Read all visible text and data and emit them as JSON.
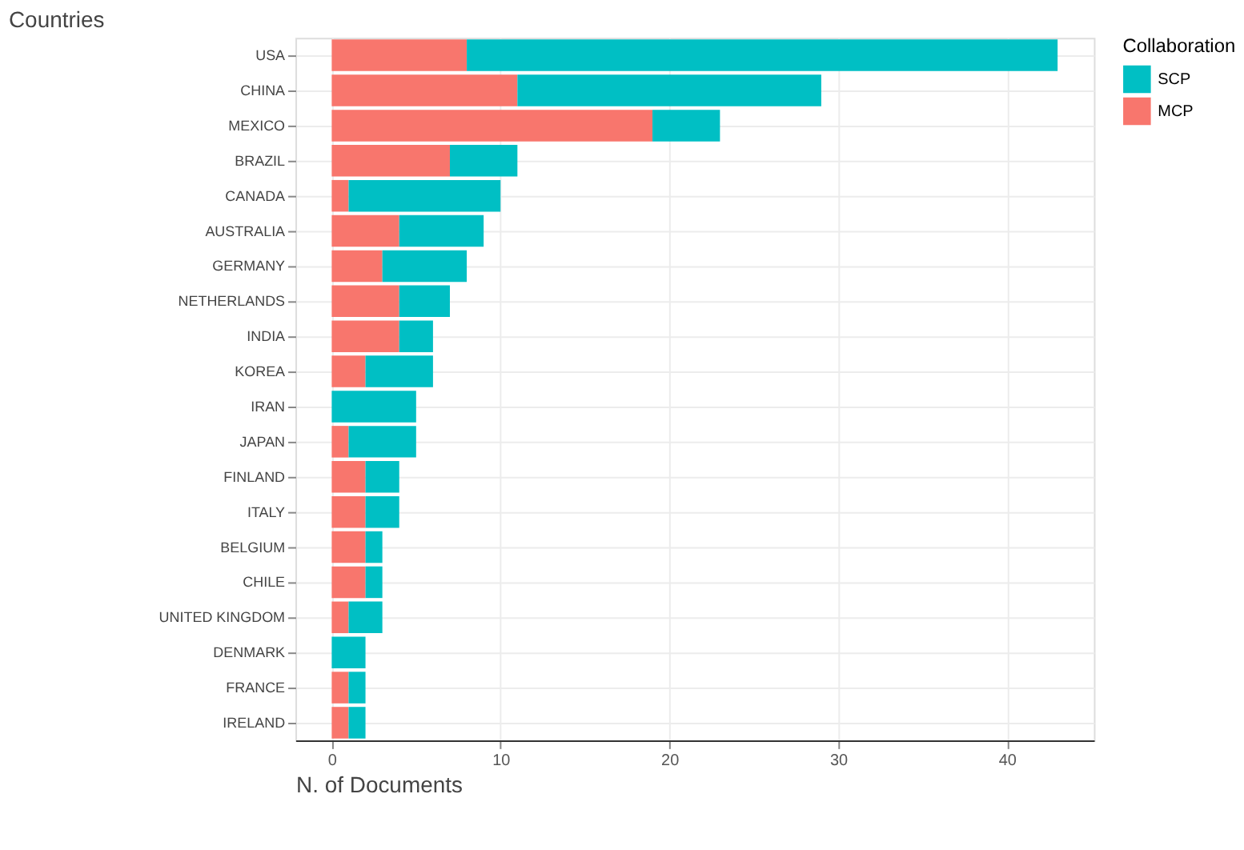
{
  "chart_data": {
    "type": "bar",
    "orientation": "horizontal",
    "stacked": true,
    "xlabel": "N. of Documents",
    "ylabel": "Countries",
    "legend_title": "Collaboration",
    "legend": "right",
    "grid": true,
    "categories": [
      "USA",
      "CHINA",
      "MEXICO",
      "BRAZIL",
      "CANADA",
      "AUSTRALIA",
      "GERMANY",
      "NETHERLANDS",
      "INDIA",
      "KOREA",
      "IRAN",
      "JAPAN",
      "FINLAND",
      "ITALY",
      "BELGIUM",
      "CHILE",
      "UNITED KINGDOM",
      "DENMARK",
      "FRANCE",
      "IRELAND"
    ],
    "series": [
      {
        "name": "MCP",
        "color": "#f8766d",
        "values": [
          8,
          11,
          19,
          7,
          1,
          4,
          3,
          4,
          4,
          2,
          0,
          1,
          2,
          2,
          2,
          2,
          1,
          0,
          1,
          1
        ]
      },
      {
        "name": "SCP",
        "color": "#00bfc4",
        "values": [
          35,
          18,
          4,
          4,
          9,
          5,
          5,
          3,
          2,
          4,
          5,
          4,
          2,
          2,
          1,
          1,
          2,
          2,
          1,
          1
        ]
      }
    ],
    "xlim": [
      -2.15,
      45.15
    ],
    "xticks": [
      0,
      10,
      20,
      30,
      40
    ]
  }
}
